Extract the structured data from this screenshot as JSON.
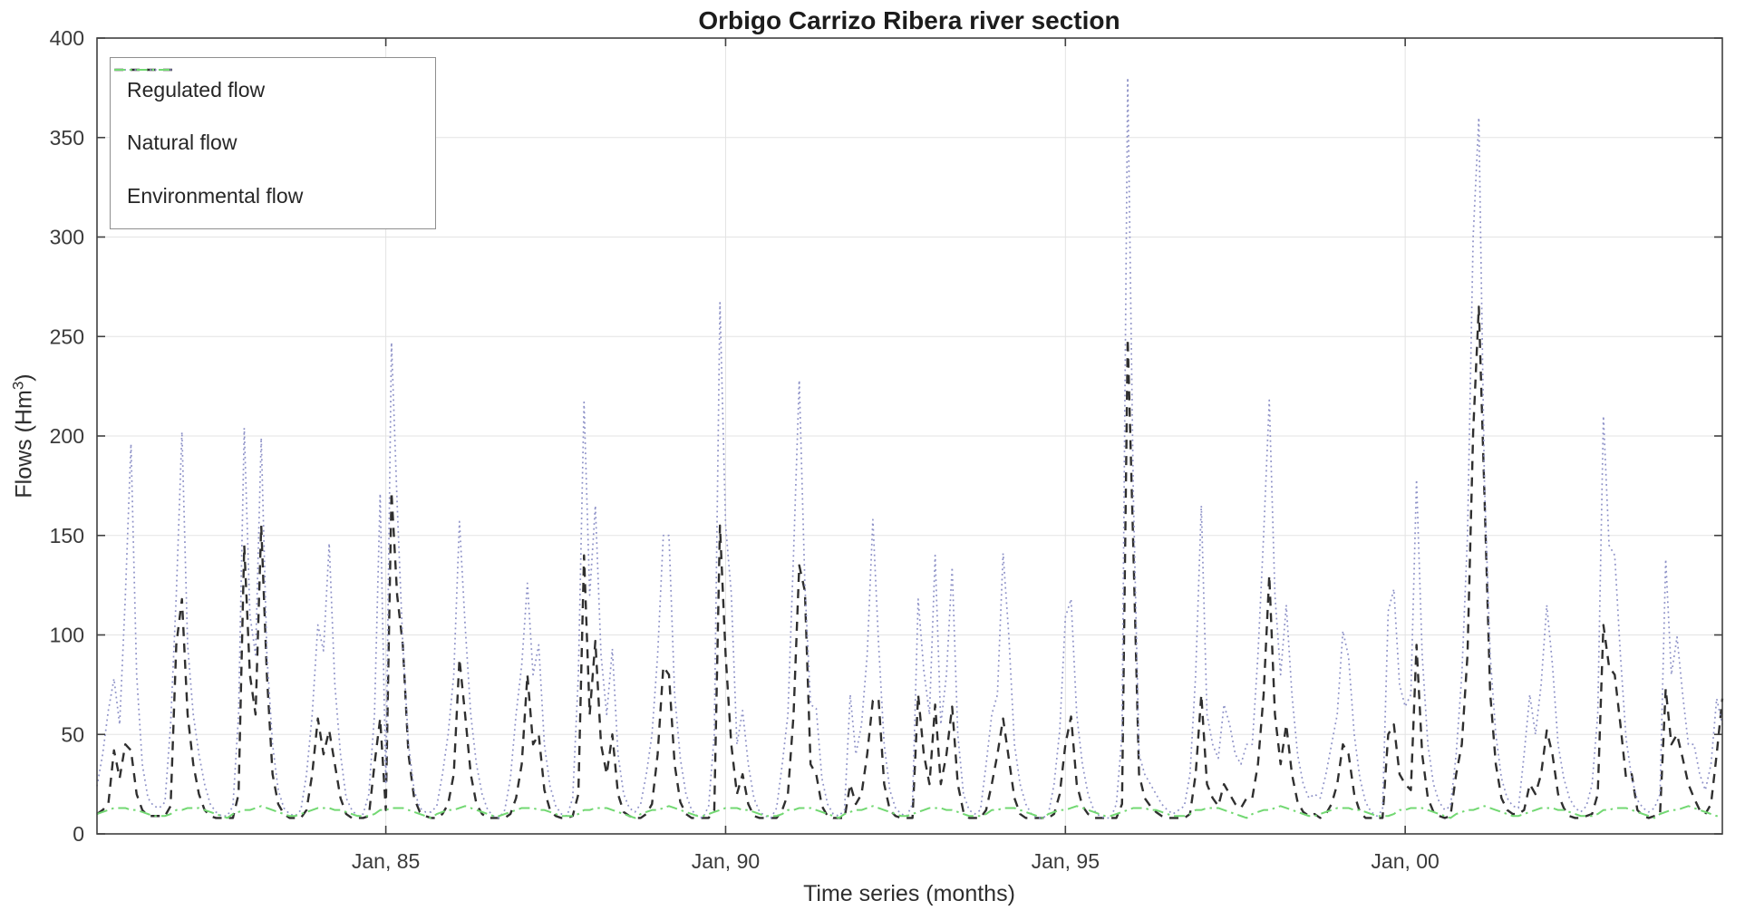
{
  "chart_data": {
    "type": "line",
    "title": "Orbigo Carrizo Ribera river section",
    "xlabel": "Time series (months)",
    "ylabel": "Flows (Hm3)",
    "ylim": [
      0,
      400
    ],
    "grid": true,
    "legend_position": "top-left",
    "x_start_month": "Oct 1980",
    "months_per_point": 1,
    "y_ticks": [
      0,
      50,
      100,
      150,
      200,
      250,
      300,
      350,
      400
    ],
    "x_ticks": [
      {
        "index": 51,
        "label": "Jan, 85"
      },
      {
        "index": 111,
        "label": "Jan, 90"
      },
      {
        "index": 171,
        "label": "Jan, 95"
      },
      {
        "index": 231,
        "label": "Jan, 00"
      }
    ],
    "axis_color": "#404040",
    "grid_color": "#e3e3e3",
    "series": [
      {
        "name": "Regulated flow",
        "style": "dashed",
        "color": "#2f2f2f",
        "width": 2.4,
        "values": [
          10,
          12,
          15,
          42,
          28,
          45,
          42,
          20,
          12,
          9,
          9,
          9,
          9,
          14,
          95,
          118,
          60,
          35,
          20,
          12,
          9,
          8,
          8,
          8,
          8,
          20,
          145,
          80,
          60,
          155,
          80,
          30,
          15,
          10,
          8,
          8,
          8,
          12,
          30,
          58,
          40,
          52,
          35,
          18,
          10,
          8,
          8,
          8,
          9,
          35,
          58,
          12,
          172,
          120,
          95,
          40,
          18,
          11,
          9,
          8,
          8,
          10,
          15,
          30,
          88,
          60,
          30,
          15,
          10,
          8,
          8,
          8,
          8,
          10,
          18,
          35,
          80,
          45,
          50,
          22,
          12,
          9,
          8,
          8,
          9,
          20,
          140,
          60,
          97,
          45,
          30,
          50,
          20,
          11,
          9,
          8,
          8,
          10,
          15,
          40,
          84,
          80,
          35,
          16,
          10,
          8,
          8,
          8,
          8,
          12,
          155,
          90,
          45,
          20,
          30,
          15,
          9,
          8,
          8,
          8,
          8,
          12,
          20,
          60,
          135,
          122,
          35,
          30,
          14,
          9,
          8,
          8,
          8,
          25,
          15,
          20,
          40,
          67,
          68,
          25,
          12,
          9,
          8,
          8,
          8,
          70,
          40,
          25,
          65,
          25,
          40,
          64,
          25,
          11,
          8,
          8,
          8,
          12,
          25,
          40,
          58,
          38,
          18,
          10,
          8,
          8,
          8,
          8,
          8,
          10,
          20,
          45,
          59,
          25,
          14,
          10,
          8,
          8,
          8,
          8,
          8,
          15,
          249,
          143,
          30,
          18,
          14,
          11,
          9,
          8,
          8,
          8,
          8,
          10,
          30,
          70,
          25,
          18,
          14,
          25,
          20,
          15,
          13,
          18,
          18,
          35,
          70,
          130,
          60,
          35,
          55,
          30,
          16,
          11,
          9,
          10,
          8,
          10,
          15,
          25,
          45,
          40,
          20,
          11,
          8,
          8,
          8,
          8,
          50,
          55,
          30,
          25,
          22,
          95,
          40,
          18,
          11,
          9,
          8,
          9,
          30,
          45,
          90,
          202,
          265,
          170,
          71,
          35,
          18,
          12,
          10,
          10,
          12,
          25,
          20,
          30,
          52,
          40,
          20,
          13,
          9,
          8,
          8,
          9,
          10,
          20,
          105,
          84,
          80,
          55,
          28,
          30,
          12,
          9,
          8,
          9,
          10,
          73,
          45,
          50,
          38,
          25,
          18,
          12,
          10,
          15,
          40,
          68
        ]
      },
      {
        "name": "Natural flow",
        "style": "dotted",
        "color": "#8d91c7",
        "width": 1.7,
        "values": [
          24,
          40,
          62,
          78,
          55,
          119,
          196,
          80,
          35,
          18,
          14,
          13,
          16,
          55,
          120,
          202,
          95,
          60,
          40,
          25,
          15,
          11,
          9,
          9,
          14,
          60,
          204,
          110,
          90,
          199,
          90,
          45,
          22,
          13,
          10,
          9,
          12,
          30,
          60,
          105,
          92,
          146,
          75,
          40,
          18,
          12,
          9,
          10,
          20,
          60,
          171,
          25,
          247,
          166,
          95,
          45,
          22,
          13,
          11,
          11,
          14,
          30,
          50,
          80,
          157,
          105,
          60,
          35,
          20,
          12,
          9,
          8,
          12,
          28,
          60,
          85,
          126,
          80,
          95,
          45,
          24,
          14,
          10,
          9,
          18,
          80,
          217,
          120,
          165,
          90,
          60,
          93,
          40,
          20,
          13,
          11,
          15,
          30,
          50,
          90,
          150,
          150,
          70,
          38,
          20,
          12,
          9,
          8,
          14,
          50,
          267,
          155,
          121,
          45,
          62,
          35,
          18,
          11,
          9,
          8,
          13,
          35,
          60,
          141,
          228,
          125,
          65,
          63,
          28,
          15,
          10,
          9,
          12,
          70,
          40,
          55,
          90,
          158,
          96,
          45,
          22,
          13,
          10,
          9,
          15,
          118,
          82,
          60,
          140,
          55,
          80,
          134,
          50,
          20,
          12,
          10,
          12,
          35,
          60,
          70,
          141,
          100,
          45,
          25,
          15,
          10,
          8,
          8,
          10,
          25,
          52,
          109,
          118,
          60,
          35,
          20,
          12,
          9,
          8,
          8,
          15,
          50,
          380,
          170,
          40,
          30,
          25,
          20,
          15,
          12,
          10,
          12,
          14,
          30,
          80,
          165,
          60,
          45,
          38,
          65,
          55,
          40,
          35,
          45,
          45,
          90,
          150,
          218,
          120,
          80,
          115,
          70,
          40,
          25,
          18,
          20,
          18,
          30,
          45,
          60,
          102,
          89,
          50,
          28,
          16,
          11,
          9,
          12,
          112,
          123,
          75,
          64,
          70,
          178,
          90,
          45,
          25,
          16,
          12,
          14,
          40,
          80,
          150,
          300,
          360,
          175,
          90,
          50,
          28,
          18,
          14,
          13,
          40,
          70,
          50,
          75,
          115,
          85,
          45,
          28,
          18,
          13,
          11,
          14,
          25,
          60,
          210,
          145,
          140,
          90,
          48,
          28,
          17,
          13,
          11,
          13,
          20,
          138,
          80,
          99,
          70,
          45,
          45,
          30,
          22,
          35,
          68,
          55
        ]
      },
      {
        "name": "Environmental flow",
        "style": "dashdot",
        "color": "#72d872",
        "width": 2.0,
        "values": [
          10,
          11,
          12,
          13,
          13,
          13,
          12,
          12,
          11,
          10,
          9,
          9,
          9,
          10,
          12,
          12,
          13,
          13,
          13,
          12,
          11,
          10,
          9,
          8,
          10,
          11,
          12,
          12,
          13,
          14,
          13,
          12,
          11,
          10,
          9,
          9,
          10,
          11,
          12,
          13,
          13,
          13,
          12,
          12,
          11,
          10,
          9,
          9,
          9,
          10,
          12,
          12,
          13,
          13,
          13,
          12,
          11,
          10,
          9,
          8,
          10,
          11,
          12,
          12,
          13,
          14,
          13,
          12,
          11,
          10,
          9,
          9,
          10,
          11,
          12,
          13,
          13,
          13,
          12,
          12,
          11,
          10,
          9,
          9,
          9,
          10,
          12,
          12,
          13,
          13,
          13,
          12,
          11,
          10,
          9,
          8,
          10,
          11,
          12,
          12,
          13,
          14,
          13,
          12,
          11,
          10,
          9,
          9,
          10,
          11,
          12,
          13,
          13,
          13,
          12,
          12,
          11,
          10,
          9,
          9,
          9,
          10,
          12,
          12,
          13,
          13,
          13,
          12,
          11,
          10,
          9,
          8,
          10,
          11,
          12,
          12,
          13,
          14,
          13,
          12,
          11,
          10,
          9,
          9,
          10,
          11,
          12,
          13,
          13,
          13,
          12,
          12,
          11,
          10,
          9,
          9,
          9,
          10,
          12,
          12,
          13,
          13,
          13,
          12,
          11,
          10,
          9,
          8,
          10,
          11,
          12,
          12,
          13,
          14,
          13,
          12,
          11,
          10,
          9,
          9,
          10,
          11,
          12,
          13,
          13,
          13,
          12,
          12,
          11,
          10,
          9,
          9,
          9,
          10,
          12,
          12,
          13,
          13,
          13,
          12,
          11,
          10,
          9,
          8,
          10,
          11,
          12,
          12,
          13,
          14,
          13,
          12,
          11,
          10,
          9,
          9,
          10,
          11,
          12,
          13,
          13,
          13,
          12,
          12,
          11,
          10,
          9,
          9,
          9,
          10,
          12,
          12,
          13,
          13,
          13,
          12,
          11,
          10,
          9,
          8,
          10,
          11,
          12,
          12,
          13,
          14,
          13,
          12,
          11,
          10,
          9,
          9,
          10,
          11,
          12,
          13,
          13,
          13,
          12,
          12,
          11,
          10,
          9,
          9,
          9,
          10,
          12,
          12,
          13,
          13,
          13,
          12,
          11,
          10,
          9,
          8,
          10,
          11,
          12,
          12,
          13,
          14,
          13,
          12,
          11,
          10,
          9,
          9
        ]
      }
    ]
  },
  "labels": {
    "ylabel_prefix": "Flows (Hm",
    "ylabel_sup": "3",
    "ylabel_suffix": ")"
  }
}
